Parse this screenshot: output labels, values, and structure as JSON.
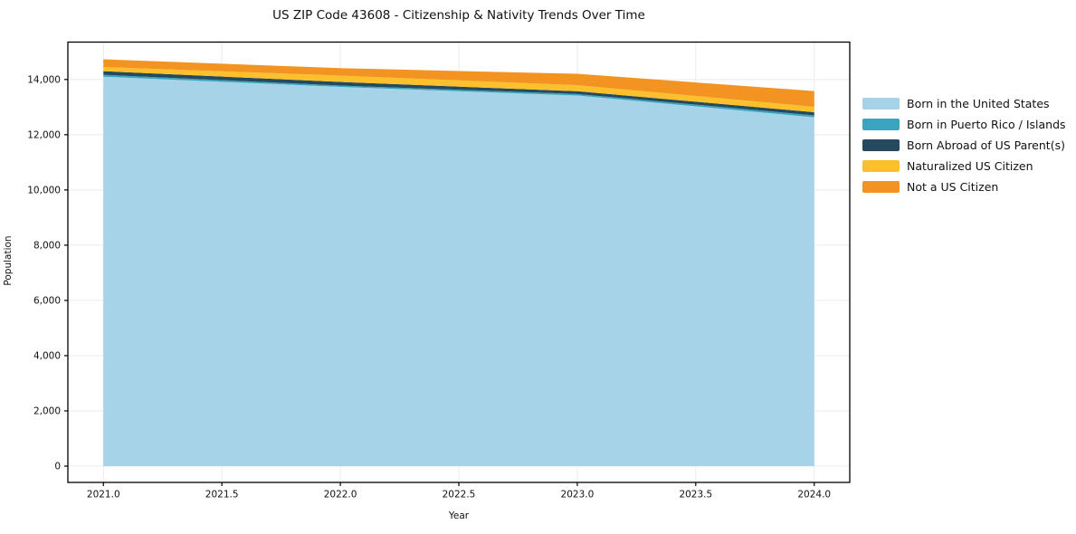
{
  "title": "US ZIP Code 43608 - Citizenship & Nativity Trends Over Time",
  "chart_data": {
    "type": "area",
    "stacked": true,
    "title": "US ZIP Code 43608 - Citizenship & Nativity Trends Over Time",
    "xlabel": "Year",
    "ylabel": "Population",
    "x": [
      2021,
      2022,
      2023,
      2024
    ],
    "series": [
      {
        "name": "Born in the United States",
        "color": "#a6d3e8",
        "values": [
          14100,
          13730,
          13420,
          12630
        ]
      },
      {
        "name": "Born in Puerto Rico / Islands",
        "color": "#3aa5bf",
        "values": [
          70,
          50,
          55,
          70
        ]
      },
      {
        "name": "Born Abroad of US Parent(s)",
        "color": "#254a5e",
        "values": [
          130,
          130,
          100,
          115
        ]
      },
      {
        "name": "Naturalized US Citizen",
        "color": "#fcc02d",
        "values": [
          150,
          230,
          220,
          195
        ]
      },
      {
        "name": "Not a US Citizen",
        "color": "#f39322",
        "values": [
          280,
          270,
          410,
          570
        ]
      }
    ],
    "stack_totals": [
      14730,
      14410,
      14205,
      13580
    ],
    "xlim": [
      2020.85,
      2024.15
    ],
    "ylim": [
      -590,
      15354
    ],
    "xticks": {
      "values": [
        2021,
        2021.5,
        2022,
        2022.5,
        2023,
        2023.5,
        2024
      ],
      "labels": [
        "2021.0",
        "2021.5",
        "2022.0",
        "2022.5",
        "2023.0",
        "2023.5",
        "2024.0"
      ]
    },
    "yticks": {
      "values": [
        0,
        2000,
        4000,
        6000,
        8000,
        10000,
        12000,
        14000
      ],
      "labels": [
        "0",
        "2,000",
        "4,000",
        "6,000",
        "8,000",
        "10,000",
        "12,000",
        "14,000"
      ]
    },
    "grid": true,
    "legend_position": "right-outside"
  },
  "colors": {
    "background": "#ffffff",
    "grid": "#ebebeb",
    "spine": "#000000",
    "text": "#111111"
  }
}
